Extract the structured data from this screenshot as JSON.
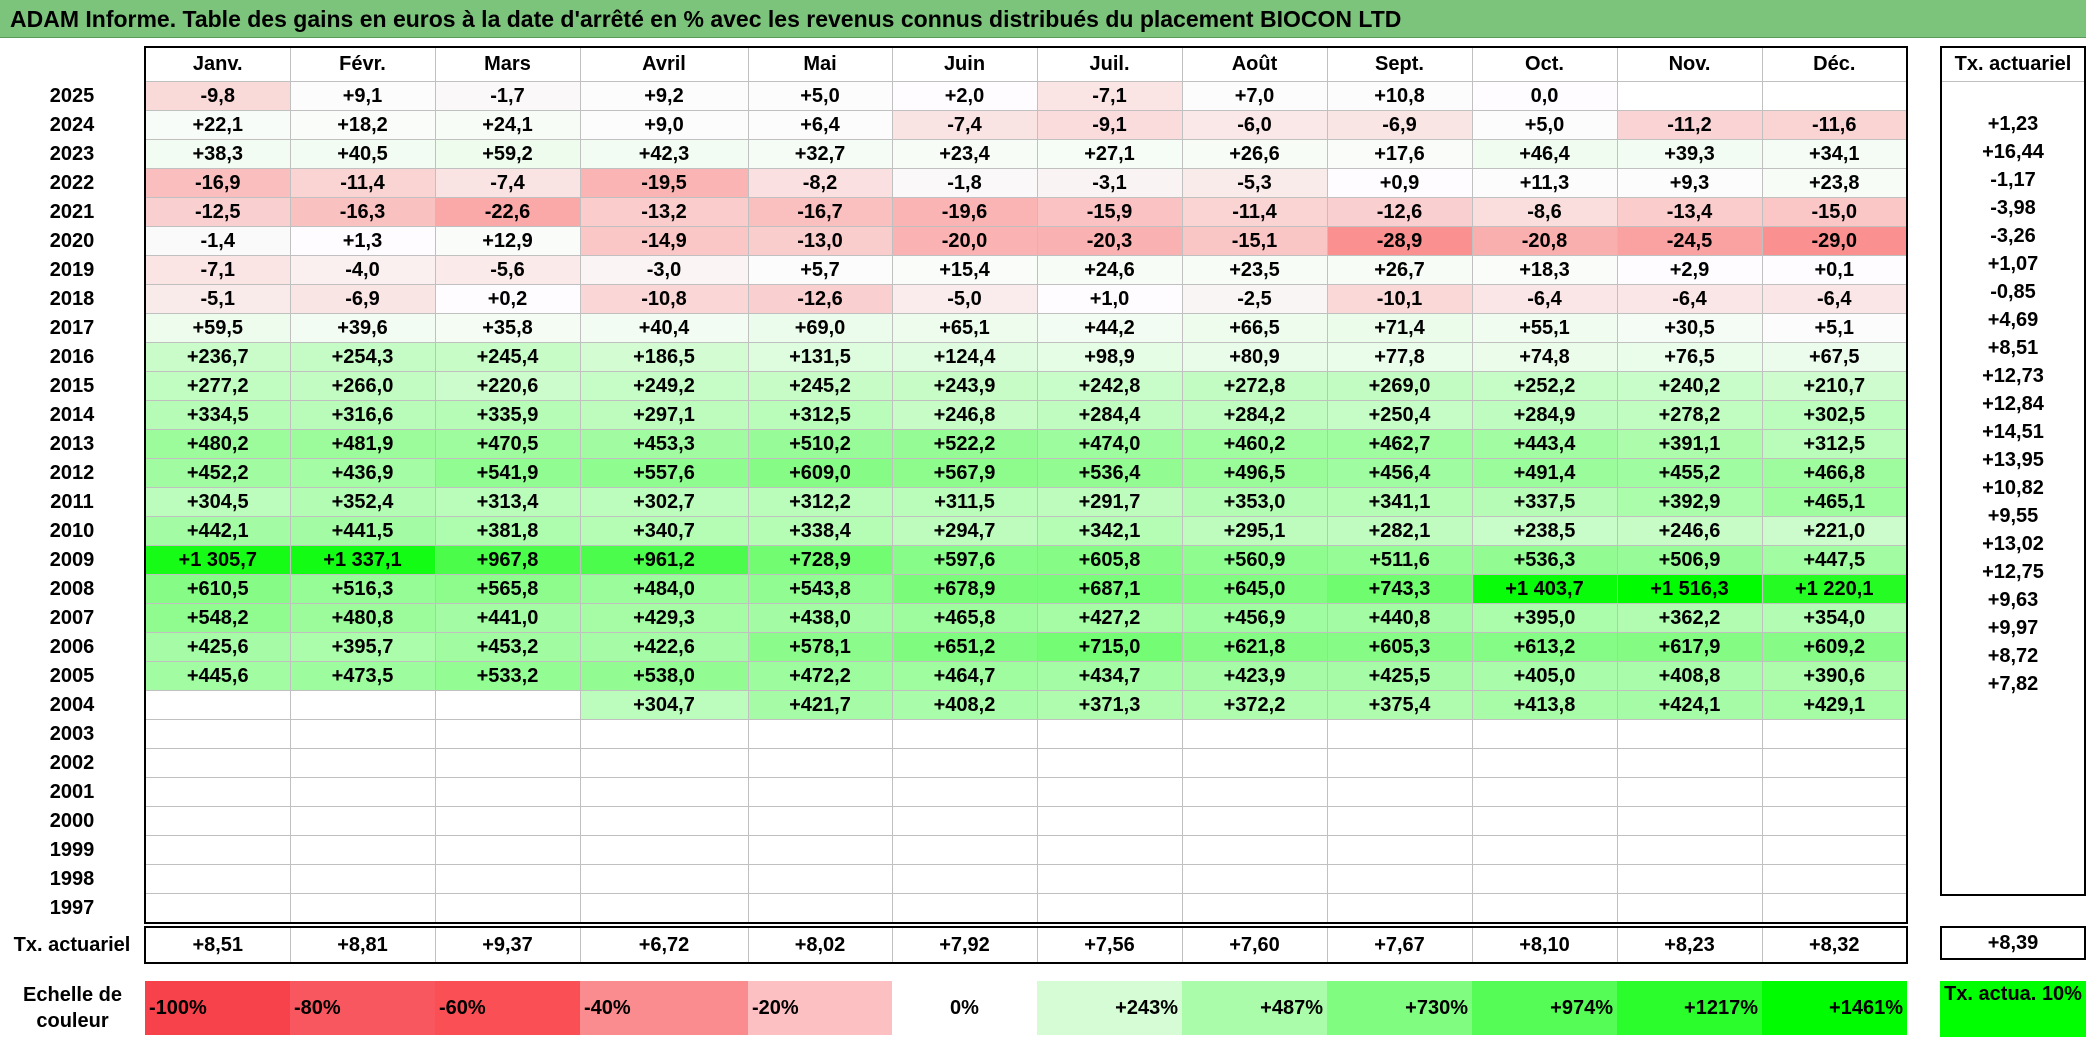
{
  "title": "ADAM Informe. Table des gains en euros à la date d'arrêté en % avec les revenus connus distribués du placement BIOCON LTD",
  "months": [
    "Janv.",
    "Févr.",
    "Mars",
    "Avril",
    "Mai",
    "Juin",
    "Juil.",
    "Août",
    "Sept.",
    "Oct.",
    "Nov.",
    "Déc."
  ],
  "ta_header": "Tx. actuariel",
  "rows": [
    {
      "year": "2025",
      "values": [
        "-9,8",
        "+9,1",
        "-1,7",
        "+9,2",
        "+5,0",
        "+2,0",
        "-7,1",
        "+7,0",
        "+10,8",
        "0,0",
        "",
        ""
      ],
      "ta": ""
    },
    {
      "year": "2024",
      "values": [
        "+22,1",
        "+18,2",
        "+24,1",
        "+9,0",
        "+6,4",
        "-7,4",
        "-9,1",
        "-6,0",
        "-6,9",
        "+5,0",
        "-11,2",
        "-11,6"
      ],
      "ta": "+1,23"
    },
    {
      "year": "2023",
      "values": [
        "+38,3",
        "+40,5",
        "+59,2",
        "+42,3",
        "+32,7",
        "+23,4",
        "+27,1",
        "+26,6",
        "+17,6",
        "+46,4",
        "+39,3",
        "+34,1"
      ],
      "ta": "+16,44"
    },
    {
      "year": "2022",
      "values": [
        "-16,9",
        "-11,4",
        "-7,4",
        "-19,5",
        "-8,2",
        "-1,8",
        "-3,1",
        "-5,3",
        "+0,9",
        "+11,3",
        "+9,3",
        "+23,8"
      ],
      "ta": "-1,17"
    },
    {
      "year": "2021",
      "values": [
        "-12,5",
        "-16,3",
        "-22,6",
        "-13,2",
        "-16,7",
        "-19,6",
        "-15,9",
        "-11,4",
        "-12,6",
        "-8,6",
        "-13,4",
        "-15,0"
      ],
      "ta": "-3,98"
    },
    {
      "year": "2020",
      "values": [
        "-1,4",
        "+1,3",
        "+12,9",
        "-14,9",
        "-13,0",
        "-20,0",
        "-20,3",
        "-15,1",
        "-28,9",
        "-20,8",
        "-24,5",
        "-29,0"
      ],
      "ta": "-3,26"
    },
    {
      "year": "2019",
      "values": [
        "-7,1",
        "-4,0",
        "-5,6",
        "-3,0",
        "+5,7",
        "+15,4",
        "+24,6",
        "+23,5",
        "+26,7",
        "+18,3",
        "+2,9",
        "+0,1"
      ],
      "ta": "+1,07"
    },
    {
      "year": "2018",
      "values": [
        "-5,1",
        "-6,9",
        "+0,2",
        "-10,8",
        "-12,6",
        "-5,0",
        "+1,0",
        "-2,5",
        "-10,1",
        "-6,4",
        "-6,4",
        "-6,4"
      ],
      "ta": "-0,85"
    },
    {
      "year": "2017",
      "values": [
        "+59,5",
        "+39,6",
        "+35,8",
        "+40,4",
        "+69,0",
        "+65,1",
        "+44,2",
        "+66,5",
        "+71,4",
        "+55,1",
        "+30,5",
        "+5,1"
      ],
      "ta": "+4,69"
    },
    {
      "year": "2016",
      "values": [
        "+236,7",
        "+254,3",
        "+245,4",
        "+186,5",
        "+131,5",
        "+124,4",
        "+98,9",
        "+80,9",
        "+77,8",
        "+74,8",
        "+76,5",
        "+67,5"
      ],
      "ta": "+8,51"
    },
    {
      "year": "2015",
      "values": [
        "+277,2",
        "+266,0",
        "+220,6",
        "+249,2",
        "+245,2",
        "+243,9",
        "+242,8",
        "+272,8",
        "+269,0",
        "+252,2",
        "+240,2",
        "+210,7"
      ],
      "ta": "+12,73"
    },
    {
      "year": "2014",
      "values": [
        "+334,5",
        "+316,6",
        "+335,9",
        "+297,1",
        "+312,5",
        "+246,8",
        "+284,4",
        "+284,2",
        "+250,4",
        "+284,9",
        "+278,2",
        "+302,5"
      ],
      "ta": "+12,84"
    },
    {
      "year": "2013",
      "values": [
        "+480,2",
        "+481,9",
        "+470,5",
        "+453,3",
        "+510,2",
        "+522,2",
        "+474,0",
        "+460,2",
        "+462,7",
        "+443,4",
        "+391,1",
        "+312,5"
      ],
      "ta": "+14,51"
    },
    {
      "year": "2012",
      "values": [
        "+452,2",
        "+436,9",
        "+541,9",
        "+557,6",
        "+609,0",
        "+567,9",
        "+536,4",
        "+496,5",
        "+456,4",
        "+491,4",
        "+455,2",
        "+466,8"
      ],
      "ta": "+13,95"
    },
    {
      "year": "2011",
      "values": [
        "+304,5",
        "+352,4",
        "+313,4",
        "+302,7",
        "+312,2",
        "+311,5",
        "+291,7",
        "+353,0",
        "+341,1",
        "+337,5",
        "+392,9",
        "+465,1"
      ],
      "ta": "+10,82"
    },
    {
      "year": "2010",
      "values": [
        "+442,1",
        "+441,5",
        "+381,8",
        "+340,7",
        "+338,4",
        "+294,7",
        "+342,1",
        "+295,1",
        "+282,1",
        "+238,5",
        "+246,6",
        "+221,0"
      ],
      "ta": "+9,55"
    },
    {
      "year": "2009",
      "values": [
        "+1 305,7",
        "+1 337,1",
        "+967,8",
        "+961,2",
        "+728,9",
        "+597,6",
        "+605,8",
        "+560,9",
        "+511,6",
        "+536,3",
        "+506,9",
        "+447,5"
      ],
      "ta": "+13,02"
    },
    {
      "year": "2008",
      "values": [
        "+610,5",
        "+516,3",
        "+565,8",
        "+484,0",
        "+543,8",
        "+678,9",
        "+687,1",
        "+645,0",
        "+743,3",
        "+1 403,7",
        "+1 516,3",
        "+1 220,1"
      ],
      "ta": "+12,75"
    },
    {
      "year": "2007",
      "values": [
        "+548,2",
        "+480,8",
        "+441,0",
        "+429,3",
        "+438,0",
        "+465,8",
        "+427,2",
        "+456,9",
        "+440,8",
        "+395,0",
        "+362,2",
        "+354,0"
      ],
      "ta": "+9,63"
    },
    {
      "year": "2006",
      "values": [
        "+425,6",
        "+395,7",
        "+453,2",
        "+422,6",
        "+578,1",
        "+651,2",
        "+715,0",
        "+621,8",
        "+605,3",
        "+613,2",
        "+617,9",
        "+609,2"
      ],
      "ta": "+9,97"
    },
    {
      "year": "2005",
      "values": [
        "+445,6",
        "+473,5",
        "+533,2",
        "+538,0",
        "+472,2",
        "+464,7",
        "+434,7",
        "+423,9",
        "+425,5",
        "+405,0",
        "+408,8",
        "+390,6"
      ],
      "ta": "+8,72"
    },
    {
      "year": "2004",
      "values": [
        "",
        "",
        "",
        "+304,7",
        "+421,7",
        "+408,2",
        "+371,3",
        "+372,2",
        "+375,4",
        "+413,8",
        "+424,1",
        "+429,1"
      ],
      "ta": "+7,82"
    },
    {
      "year": "2003",
      "values": [
        "",
        "",
        "",
        "",
        "",
        "",
        "",
        "",
        "",
        "",
        "",
        ""
      ],
      "ta": ""
    },
    {
      "year": "2002",
      "values": [
        "",
        "",
        "",
        "",
        "",
        "",
        "",
        "",
        "",
        "",
        "",
        ""
      ],
      "ta": ""
    },
    {
      "year": "2001",
      "values": [
        "",
        "",
        "",
        "",
        "",
        "",
        "",
        "",
        "",
        "",
        "",
        ""
      ],
      "ta": ""
    },
    {
      "year": "2000",
      "values": [
        "",
        "",
        "",
        "",
        "",
        "",
        "",
        "",
        "",
        "",
        "",
        ""
      ],
      "ta": ""
    },
    {
      "year": "1999",
      "values": [
        "",
        "",
        "",
        "",
        "",
        "",
        "",
        "",
        "",
        "",
        "",
        ""
      ],
      "ta": ""
    },
    {
      "year": "1998",
      "values": [
        "",
        "",
        "",
        "",
        "",
        "",
        "",
        "",
        "",
        "",
        "",
        ""
      ],
      "ta": ""
    },
    {
      "year": "1997",
      "values": [
        "",
        "",
        "",
        "",
        "",
        "",
        "",
        "",
        "",
        "",
        "",
        ""
      ],
      "ta": ""
    }
  ],
  "summary": {
    "label": "Tx. actuariel",
    "values": [
      "+8,51",
      "+8,81",
      "+9,37",
      "+6,72",
      "+8,02",
      "+7,92",
      "+7,56",
      "+7,60",
      "+7,67",
      "+8,10",
      "+8,23",
      "+8,32"
    ],
    "total": "+8,39"
  },
  "scale": {
    "label": "Echelle de couleur",
    "items": [
      {
        "text": "-100%",
        "color": "#f8424b",
        "align": "neg"
      },
      {
        "text": "-80%",
        "color": "#f8575f",
        "align": "neg"
      },
      {
        "text": "-60%",
        "color": "#fa4f55",
        "align": "neg"
      },
      {
        "text": "-40%",
        "color": "#fa8c8f",
        "align": "neg"
      },
      {
        "text": "-20%",
        "color": "#fcc0c2",
        "align": "neg"
      },
      {
        "text": "0%",
        "color": "#ffffff",
        "align": "mid"
      },
      {
        "text": "+243%",
        "color": "#d5fcd5",
        "align": "pos"
      },
      {
        "text": "+487%",
        "color": "#aafcaa",
        "align": "pos"
      },
      {
        "text": "+730%",
        "color": "#80fc80",
        "align": "pos"
      },
      {
        "text": "+974%",
        "color": "#55fc55",
        "align": "pos"
      },
      {
        "text": "+1217%",
        "color": "#2bfc2b",
        "align": "pos"
      },
      {
        "text": "+1461%",
        "color": "#00fc00",
        "align": "pos"
      }
    ],
    "ta_label": "Tx. actua. 10%",
    "ta_color": "#00ff00"
  }
}
